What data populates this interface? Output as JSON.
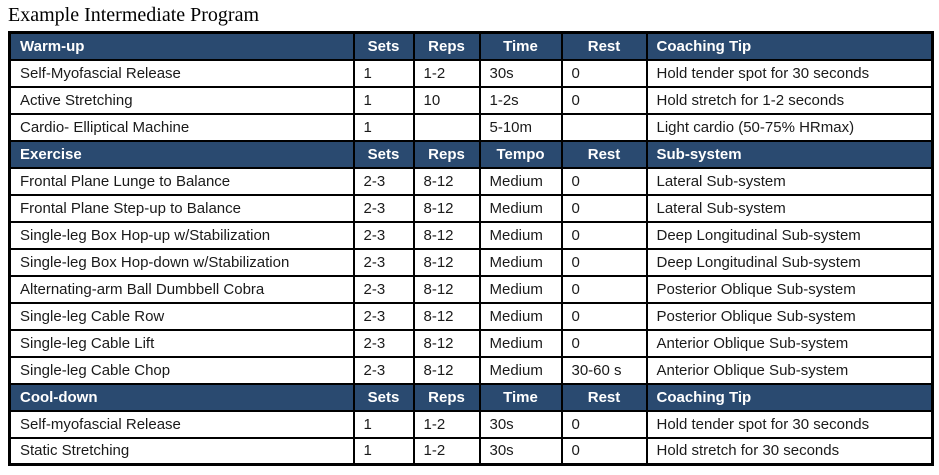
{
  "title": "Example Intermediate Program",
  "colors": {
    "header_bg": "#2A4A70",
    "header_text": "#FFFFFF",
    "border": "#000000",
    "body_text": "#1A1A1A",
    "row_bg": "#FFFFFF"
  },
  "sections": [
    {
      "name": "warm-up",
      "header": [
        "Warm-up",
        "Sets",
        "Reps",
        "Time",
        "Rest",
        "Coaching Tip"
      ],
      "rows": [
        [
          "Self-Myofascial Release",
          "1",
          "1-2",
          "30s",
          "0",
          "Hold tender spot for 30 seconds"
        ],
        [
          "Active Stretching",
          "1",
          "10",
          "1-2s",
          "0",
          "Hold stretch for 1-2 seconds"
        ],
        [
          "Cardio- Elliptical Machine",
          "1",
          "",
          "5-10m",
          "",
          "Light cardio (50-75% HRmax)"
        ]
      ]
    },
    {
      "name": "exercise",
      "header": [
        "Exercise",
        "Sets",
        "Reps",
        "Tempo",
        "Rest",
        "Sub-system"
      ],
      "rows": [
        [
          "Frontal Plane Lunge to Balance",
          "2-3",
          "8-12",
          "Medium",
          "0",
          "Lateral Sub-system"
        ],
        [
          "Frontal Plane Step-up to Balance",
          "2-3",
          "8-12",
          "Medium",
          "0",
          "Lateral Sub-system"
        ],
        [
          "Single-leg Box Hop-up w/Stabilization",
          "2-3",
          "8-12",
          "Medium",
          "0",
          "Deep Longitudinal Sub-system"
        ],
        [
          "Single-leg Box Hop-down w/Stabilization",
          "2-3",
          "8-12",
          "Medium",
          "0",
          "Deep Longitudinal Sub-system"
        ],
        [
          "Alternating-arm Ball Dumbbell Cobra",
          "2-3",
          "8-12",
          "Medium",
          "0",
          "Posterior Oblique Sub-system"
        ],
        [
          "Single-leg Cable Row",
          "2-3",
          "8-12",
          "Medium",
          "0",
          "Posterior Oblique Sub-system"
        ],
        [
          "Single-leg Cable Lift",
          "2-3",
          "8-12",
          "Medium",
          "0",
          "Anterior Oblique Sub-system"
        ],
        [
          "Single-leg Cable Chop",
          "2-3",
          "8-12",
          "Medium",
          "30-60 s",
          "Anterior Oblique Sub-system"
        ]
      ]
    },
    {
      "name": "cool-down",
      "header": [
        "Cool-down",
        "Sets",
        "Reps",
        "Time",
        "Rest",
        "Coaching Tip"
      ],
      "rows": [
        [
          "Self-myofascial Release",
          "1",
          "1-2",
          "30s",
          "0",
          "Hold tender spot for 30 seconds"
        ],
        [
          "Static Stretching",
          "1",
          "1-2",
          "30s",
          "0",
          "Hold stretch for 30 seconds"
        ]
      ]
    }
  ]
}
